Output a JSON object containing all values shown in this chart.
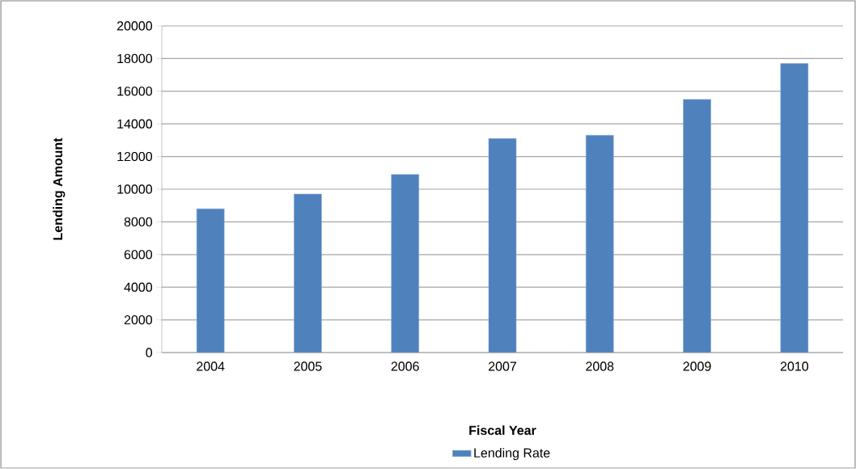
{
  "chart_data": {
    "type": "bar",
    "xlabel": "Fiscal Year",
    "ylabel": "Lending Amount",
    "categories": [
      "2004",
      "2005",
      "2006",
      "2007",
      "2008",
      "2009",
      "2010"
    ],
    "series": [
      {
        "name": "Lending Rate",
        "color": "#4f81bd",
        "values": [
          8800,
          9700,
          10900,
          13100,
          13300,
          15500,
          17700
        ]
      }
    ],
    "ylim": [
      0,
      20000
    ],
    "yticks": [
      0,
      2000,
      4000,
      6000,
      8000,
      10000,
      12000,
      14000,
      16000,
      18000,
      20000
    ],
    "grid": "y",
    "legend": "bottom"
  }
}
